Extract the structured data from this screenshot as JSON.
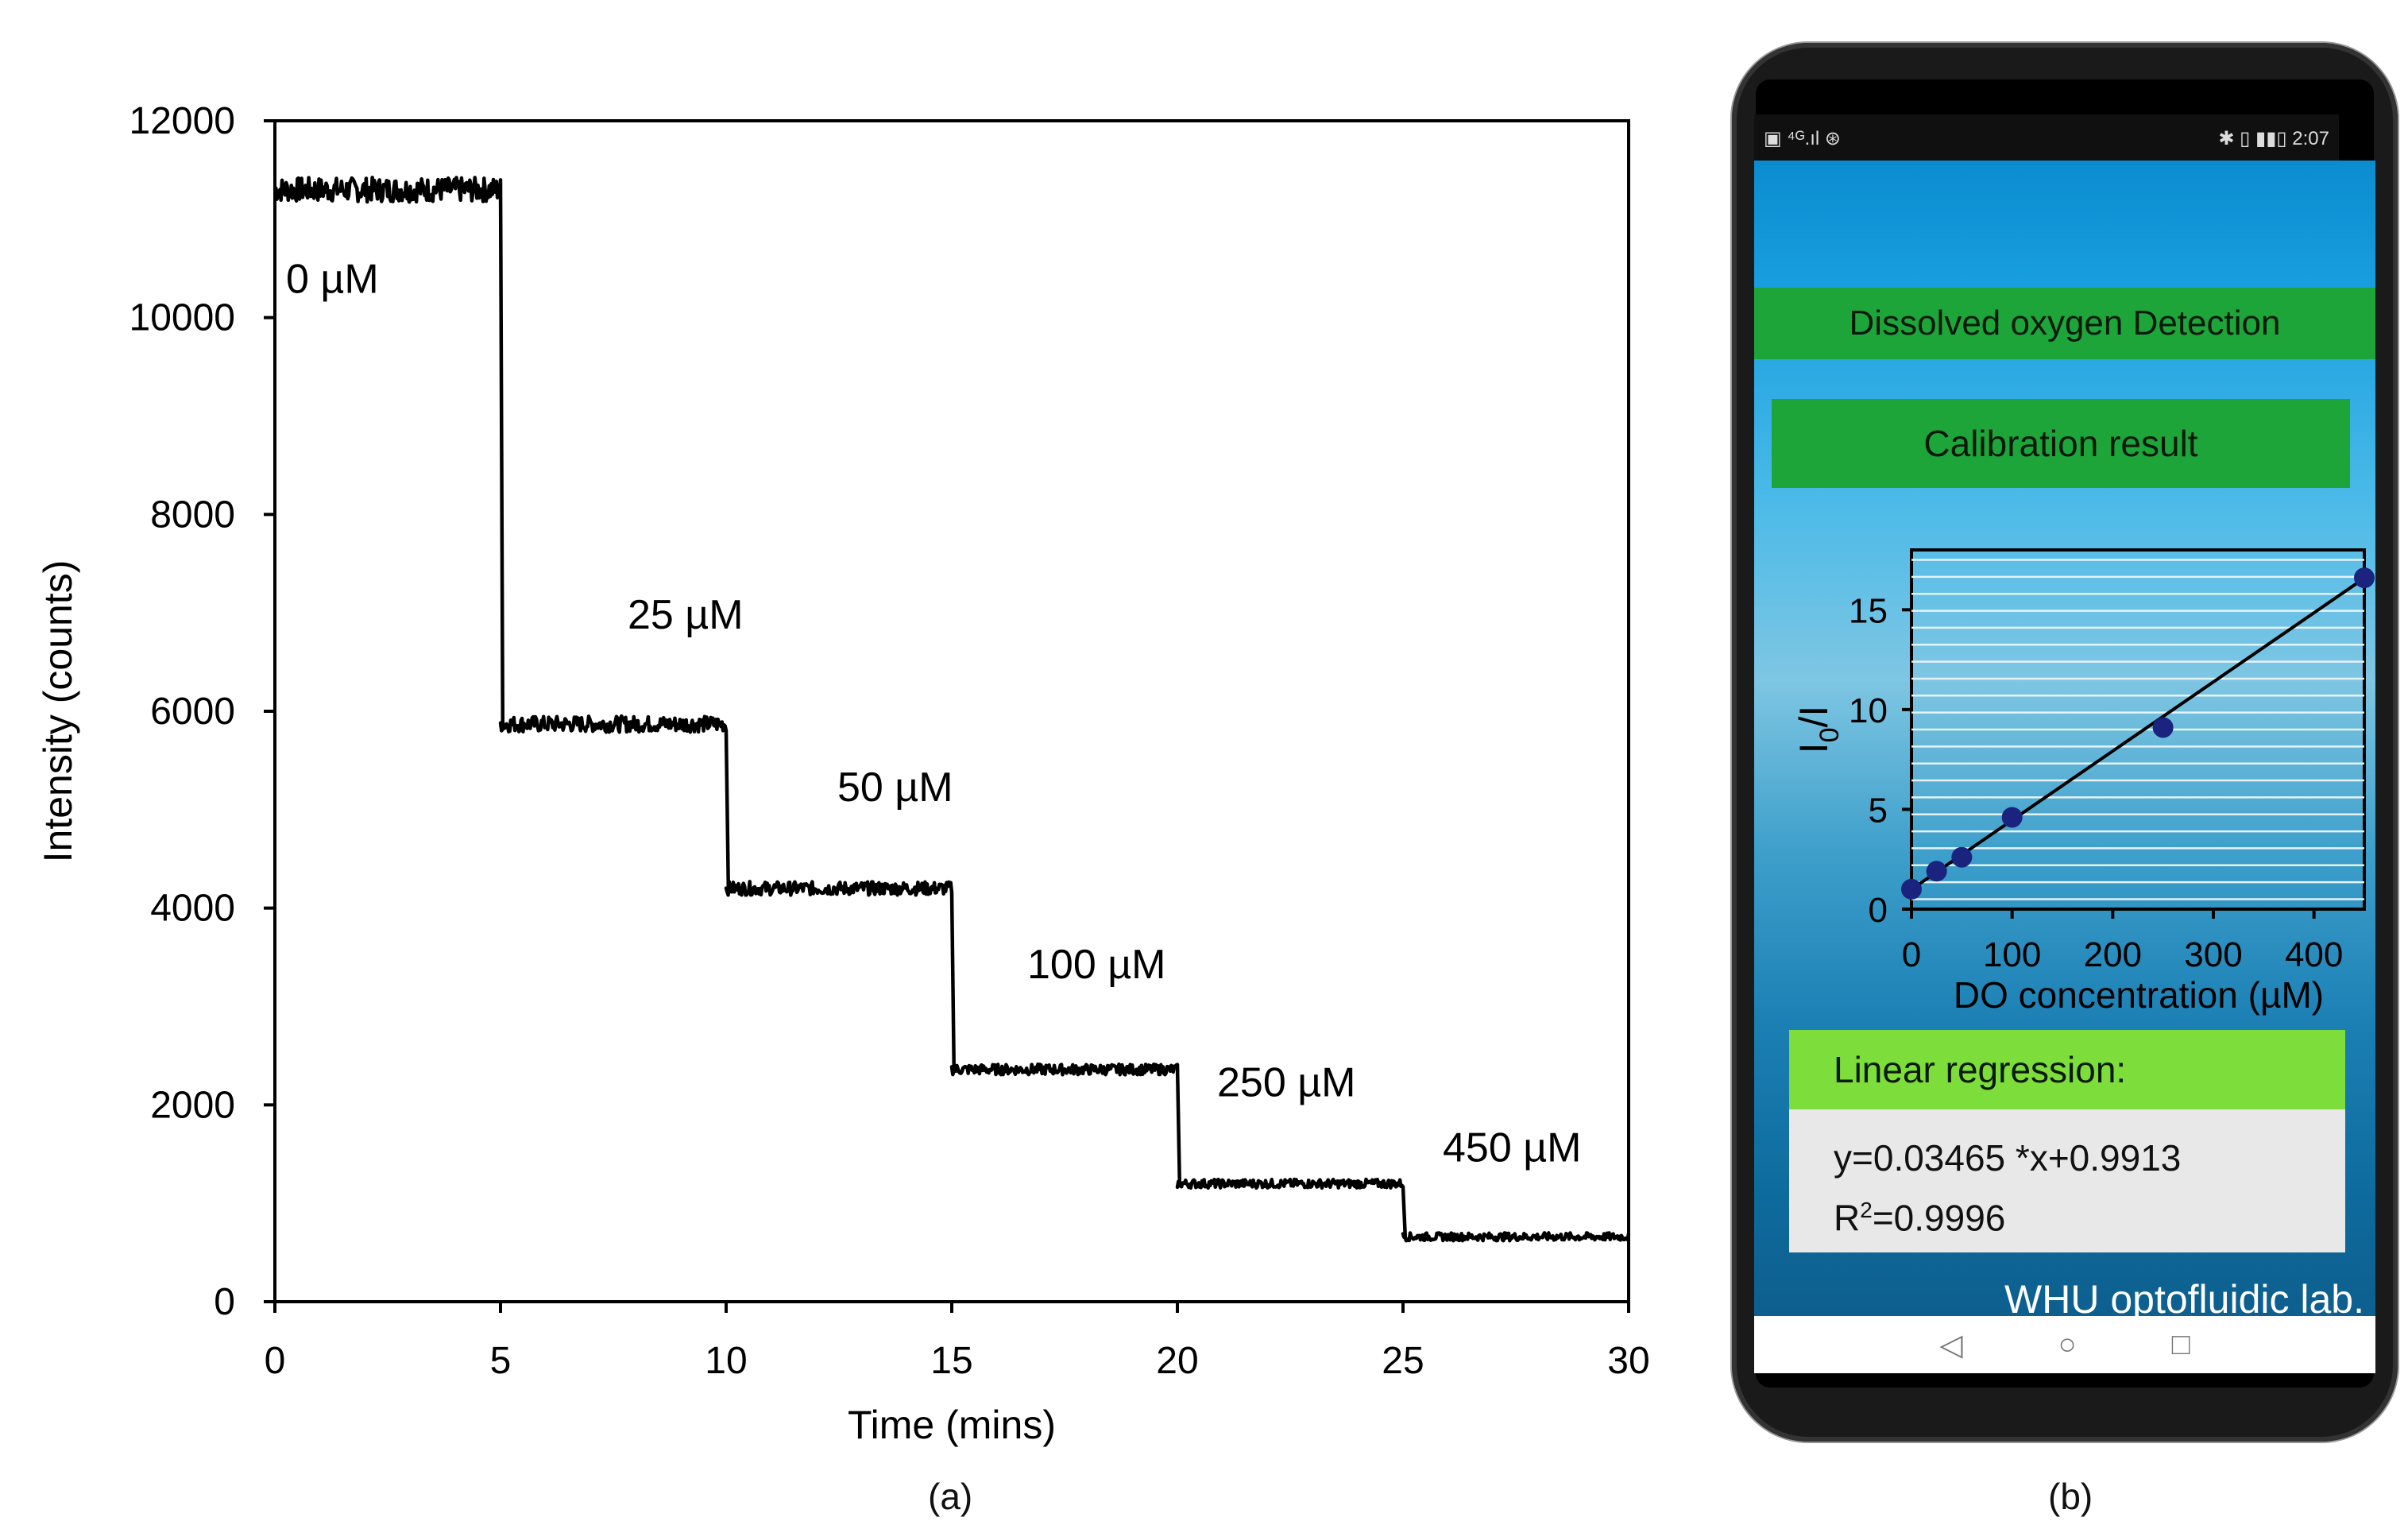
{
  "chart_data": [
    {
      "type": "line",
      "x": [
        0,
        5,
        10,
        15,
        20,
        25,
        30
      ],
      "series": [
        {
          "values": [
            11300,
            5870,
            4200,
            2360,
            1200,
            660,
            660
          ]
        }
      ],
      "step_segments": [
        {
          "x_start": 0,
          "x_end": 5,
          "y": 11300,
          "label": "0 µM"
        },
        {
          "x_start": 5,
          "x_end": 10,
          "y": 5870,
          "label": "25 µM"
        },
        {
          "x_start": 10,
          "x_end": 15,
          "y": 4200,
          "label": "50 µM"
        },
        {
          "x_start": 15,
          "x_end": 20,
          "y": 2360,
          "label": "100 µM"
        },
        {
          "x_start": 20,
          "x_end": 25,
          "y": 1200,
          "label": "250 µM"
        },
        {
          "x_start": 25,
          "x_end": 30,
          "y": 660,
          "label": "450 µM"
        }
      ],
      "xlabel": "Time (mins)",
      "ylabel": "Intensity (counts)",
      "xlim": [
        0,
        30
      ],
      "ylim": [
        0,
        12000
      ],
      "xticks": [
        0,
        5,
        10,
        15,
        20,
        25,
        30
      ],
      "yticks": [
        0,
        2000,
        4000,
        6000,
        8000,
        10000,
        12000
      ],
      "grid": false,
      "caption": "(a)",
      "line_color": "#000000"
    },
    {
      "type": "scatter",
      "x": [
        0,
        25,
        50,
        100,
        250,
        450
      ],
      "series": [
        {
          "values": [
            1.0,
            1.9,
            2.6,
            4.6,
            9.1,
            16.6
          ]
        }
      ],
      "fit_line": {
        "slope": 0.03465,
        "intercept": 0.9913
      },
      "xlabel": "DO concentration (µM)",
      "ylabel_main": "I",
      "ylabel_sub": "0",
      "ylabel_tail": "/I",
      "xlim": [
        0,
        450
      ],
      "ylim": [
        0,
        18
      ],
      "xticks": [
        0,
        100,
        200,
        300,
        400
      ],
      "yticks": [
        0,
        5,
        10,
        15
      ],
      "grid": true,
      "point_color": "#1a237e"
    }
  ],
  "phone": {
    "status_left": "▣ ⁴ᴳ.ıl ⊛",
    "status_right": "✱ ▯ ▮▮▯ 2:07",
    "app_title": "Dissolved oxygen Detection",
    "calibration_button": "Calibration result",
    "regression_header": "Linear regression:",
    "regression_equation": "y=0.03465 *x+0.9913",
    "r2_main": "R",
    "r2_sup": "2",
    "r2_value": "=0.9996",
    "lab_label": "WHU optofluidic lab.",
    "nav_back": "◁",
    "nav_home": "○",
    "nav_recent": "□",
    "caption": "(b)"
  }
}
